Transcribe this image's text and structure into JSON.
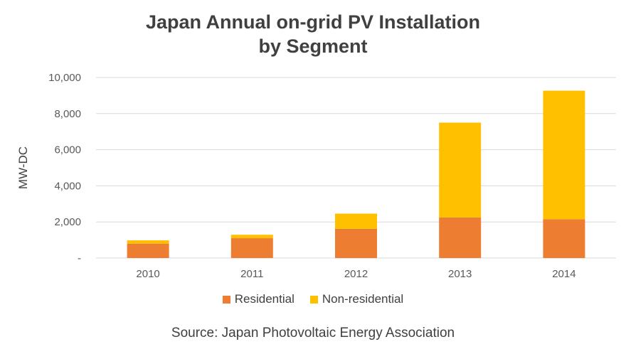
{
  "chart_data": {
    "type": "bar",
    "stacked": true,
    "title_lines": [
      "Japan Annual on-grid PV Installation",
      "by Segment"
    ],
    "xlabel": "",
    "ylabel": "MW-DC",
    "categories": [
      "2010",
      "2011",
      "2012",
      "2013",
      "2014"
    ],
    "ylim": [
      0,
      10000
    ],
    "yticks": [
      0,
      2000,
      4000,
      6000,
      8000,
      10000
    ],
    "ytick_labels": [
      "-",
      "2,000",
      "4,000",
      "6,000",
      "8,000",
      "10,000"
    ],
    "series": [
      {
        "name": "Residential",
        "color": "#ED7D31",
        "values": [
          800,
          1100,
          1620,
          2250,
          2150
        ]
      },
      {
        "name": "Non-residential",
        "color": "#FFC000",
        "values": [
          180,
          190,
          840,
          5250,
          7120
        ]
      }
    ],
    "grid": true,
    "legend": "bottom",
    "source": "Source: Japan Photovoltaic Energy Association"
  }
}
